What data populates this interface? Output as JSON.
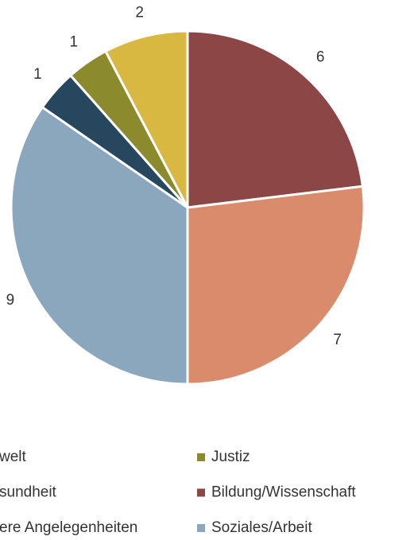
{
  "chart_data": {
    "type": "pie",
    "categories": [
      "Bildung/Wissenschaft",
      "sundheit",
      "Soziales/Arbeit",
      "ere Angelegenheiten",
      "Justiz",
      "welt"
    ],
    "values": [
      6,
      7,
      9,
      1,
      1,
      2
    ],
    "colors": [
      "#8c4646",
      "#d98b6b",
      "#8aa7be",
      "#27475f",
      "#8b8b2d",
      "#d9b841"
    ]
  }
}
